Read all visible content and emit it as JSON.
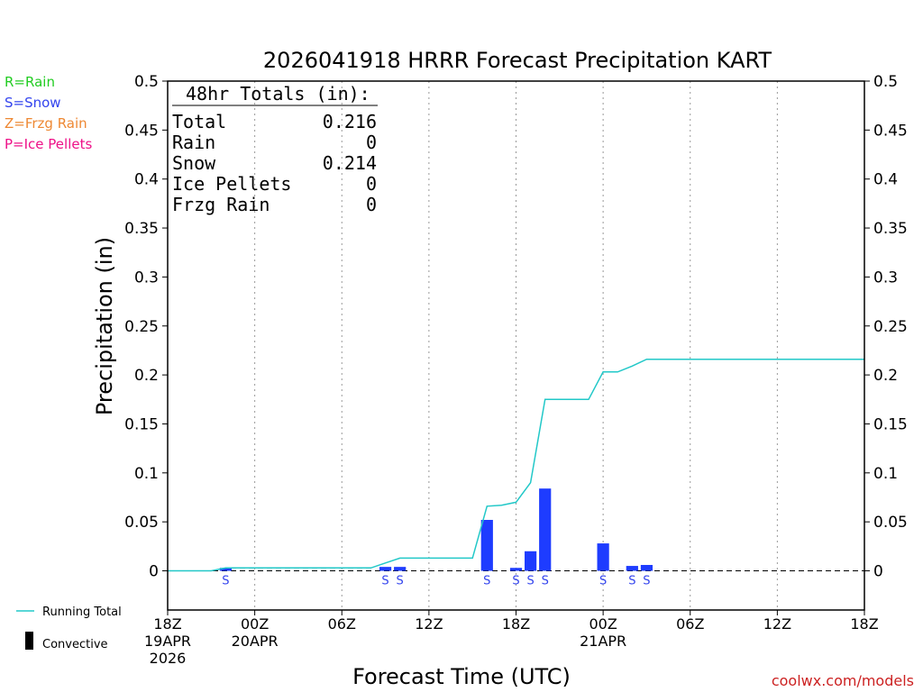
{
  "chart_data": {
    "type": "bar",
    "title": "2026041918 HRRR Forecast Precipitation KART",
    "xlabel": "Forecast Time (UTC)",
    "ylabel": "Precipitation (in)",
    "ylim": [
      -0.04,
      0.5
    ],
    "y_ticks": [
      0,
      0.05,
      0.1,
      0.15,
      0.2,
      0.25,
      0.3,
      0.35,
      0.4,
      0.45,
      0.5
    ],
    "y_tick_labels": [
      "0",
      "0.05",
      "0.1",
      "0.15",
      "0.2",
      "0.25",
      "0.3",
      "0.35",
      "0.4",
      "0.45",
      "0.5"
    ],
    "x_range_hours": [
      0,
      48
    ],
    "x_ticks": [
      {
        "hour": 0,
        "lines": [
          "18Z",
          "19APR",
          "2026"
        ]
      },
      {
        "hour": 6,
        "lines": [
          "00Z",
          "20APR"
        ]
      },
      {
        "hour": 12,
        "lines": [
          "06Z"
        ]
      },
      {
        "hour": 18,
        "lines": [
          "12Z"
        ]
      },
      {
        "hour": 24,
        "lines": [
          "18Z"
        ]
      },
      {
        "hour": 30,
        "lines": [
          "00Z",
          "21APR"
        ]
      },
      {
        "hour": 36,
        "lines": [
          "06Z"
        ]
      },
      {
        "hour": 42,
        "lines": [
          "12Z"
        ]
      },
      {
        "hour": 48,
        "lines": [
          "18Z"
        ]
      }
    ],
    "grid": "dotted vertical",
    "bars": [
      {
        "hour": 4,
        "value": 0.003,
        "ptype": "S"
      },
      {
        "hour": 15,
        "value": 0.004,
        "ptype": "S"
      },
      {
        "hour": 16,
        "value": 0.004,
        "ptype": "S"
      },
      {
        "hour": 22,
        "value": 0.052,
        "ptype": "S"
      },
      {
        "hour": 24,
        "value": 0.003,
        "ptype": "S"
      },
      {
        "hour": 25,
        "value": 0.02,
        "ptype": "S"
      },
      {
        "hour": 26,
        "value": 0.084,
        "ptype": "S"
      },
      {
        "hour": 30,
        "value": 0.028,
        "ptype": "S"
      },
      {
        "hour": 32,
        "value": 0.005,
        "ptype": "S"
      },
      {
        "hour": 33,
        "value": 0.006,
        "ptype": "S"
      }
    ],
    "running_total": [
      {
        "hour": 0,
        "value": 0
      },
      {
        "hour": 3,
        "value": 0
      },
      {
        "hour": 4,
        "value": 0.003
      },
      {
        "hour": 14,
        "value": 0.003
      },
      {
        "hour": 15,
        "value": 0.008
      },
      {
        "hour": 16,
        "value": 0.013
      },
      {
        "hour": 21,
        "value": 0.013
      },
      {
        "hour": 22,
        "value": 0.066
      },
      {
        "hour": 23,
        "value": 0.067
      },
      {
        "hour": 24,
        "value": 0.07
      },
      {
        "hour": 25,
        "value": 0.09
      },
      {
        "hour": 26,
        "value": 0.175
      },
      {
        "hour": 29,
        "value": 0.175
      },
      {
        "hour": 30,
        "value": 0.203
      },
      {
        "hour": 31,
        "value": 0.203
      },
      {
        "hour": 32,
        "value": 0.209
      },
      {
        "hour": 33,
        "value": 0.216
      },
      {
        "hour": 48,
        "value": 0.216
      }
    ],
    "totals_box": {
      "header": "48hr Totals (in):",
      "rows": [
        {
          "label": "Total",
          "value": "0.216"
        },
        {
          "label": "Rain",
          "value": "0"
        },
        {
          "label": "Snow",
          "value": "0.214"
        },
        {
          "label": "Ice Pellets",
          "value": "0"
        },
        {
          "label": "Frzg Rain",
          "value": "0"
        }
      ]
    },
    "ptype_legend": [
      {
        "text": "R=Rain",
        "color": "#22cc22"
      },
      {
        "text": "S=Snow",
        "color": "#3344ee"
      },
      {
        "text": "Z=Frzg Rain",
        "color": "#ee8833"
      },
      {
        "text": "P=Ice Pellets",
        "color": "#ee1188"
      }
    ],
    "series_legend": [
      {
        "name": "Running Total",
        "color": "#22c8c8",
        "kind": "line"
      },
      {
        "name": "Convective",
        "color": "#000000",
        "kind": "bar"
      }
    ],
    "colors": {
      "bar": "#1e3cff",
      "running_total": "#22c8c8",
      "snow_label": "#3344ee"
    }
  },
  "credit": "coolwx.com/models"
}
